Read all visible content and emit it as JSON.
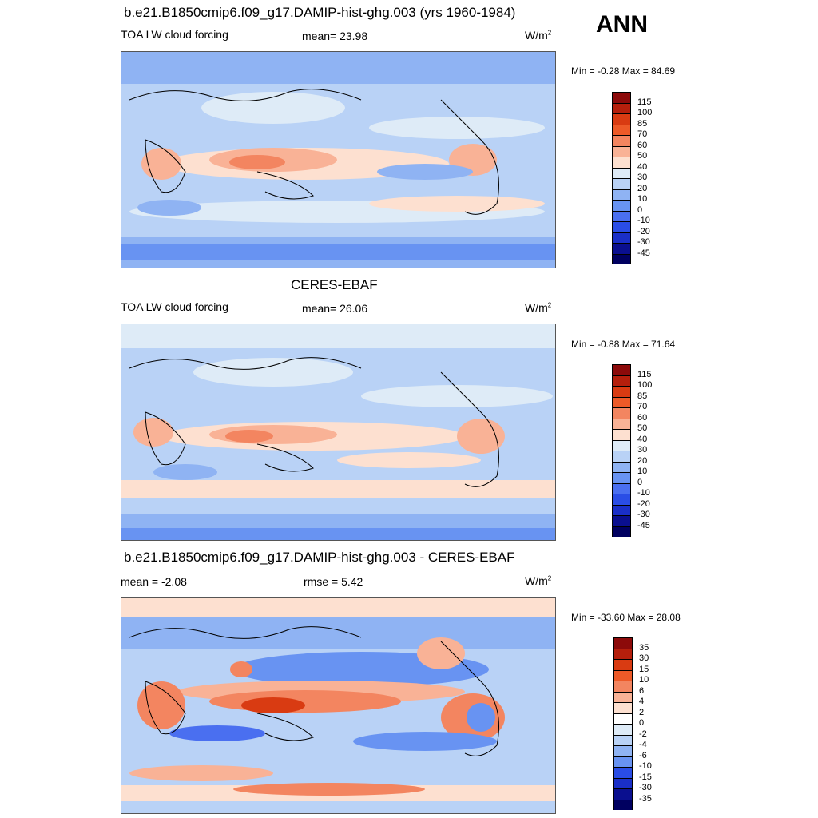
{
  "season": "ANN",
  "panels": [
    {
      "title": "b.e21.B1850cmip6.f09_g17.DAMIP-hist-ghg.003 (yrs 1960-1984)",
      "left_text": "TOA LW cloud forcing",
      "center_text": "mean=  23.98",
      "units": "W/m",
      "units_sup": "2",
      "minmax": "Min =  -0.28 Max =  84.69",
      "colorbar": {
        "labels": [
          "115",
          "100",
          "85",
          "70",
          "60",
          "50",
          "40",
          "30",
          "20",
          "10",
          "0",
          "-10",
          "-20",
          "-30",
          "-45"
        ],
        "colors": [
          "#8c0a0a",
          "#b51f0c",
          "#d93b12",
          "#ed5a28",
          "#f38560",
          "#f9b296",
          "#fde0d0",
          "#deebf7",
          "#b9d2f6",
          "#8fb3f3",
          "#6893f2",
          "#4a6ff0",
          "#2a4de6",
          "#1a2fc8",
          "#0a0f8f",
          "#000060"
        ]
      }
    },
    {
      "title": "CERES-EBAF",
      "left_text": "TOA LW cloud forcing",
      "center_text": "mean=  26.06",
      "units": "W/m",
      "units_sup": "2",
      "minmax": "Min =  -0.88 Max =  71.64",
      "colorbar": {
        "labels": [
          "115",
          "100",
          "85",
          "70",
          "60",
          "50",
          "40",
          "30",
          "20",
          "10",
          "0",
          "-10",
          "-20",
          "-30",
          "-45"
        ],
        "colors": [
          "#8c0a0a",
          "#b51f0c",
          "#d93b12",
          "#ed5a28",
          "#f38560",
          "#f9b296",
          "#fde0d0",
          "#deebf7",
          "#b9d2f6",
          "#8fb3f3",
          "#6893f2",
          "#4a6ff0",
          "#2a4de6",
          "#1a2fc8",
          "#0a0f8f",
          "#000060"
        ]
      }
    },
    {
      "title": "b.e21.B1850cmip6.f09_g17.DAMIP-hist-ghg.003 - CERES-EBAF",
      "left_text": "mean =  -2.08",
      "center_text": "rmse =   5.42",
      "units": "W/m",
      "units_sup": "2",
      "minmax": "Min = -33.60 Max =  28.08",
      "colorbar": {
        "labels": [
          "35",
          "30",
          "15",
          "10",
          "6",
          "4",
          "2",
          "0",
          "-2",
          "-4",
          "-6",
          "-10",
          "-15",
          "-30",
          "-35"
        ],
        "colors": [
          "#8c0a0a",
          "#b51f0c",
          "#d93b12",
          "#ed5a28",
          "#f38560",
          "#f9b296",
          "#fde0d0",
          "#ffffff",
          "#deebf7",
          "#b9d2f6",
          "#8fb3f3",
          "#6893f2",
          "#2a4de6",
          "#1a2fc8",
          "#0a0f8f",
          "#000060"
        ]
      }
    }
  ]
}
